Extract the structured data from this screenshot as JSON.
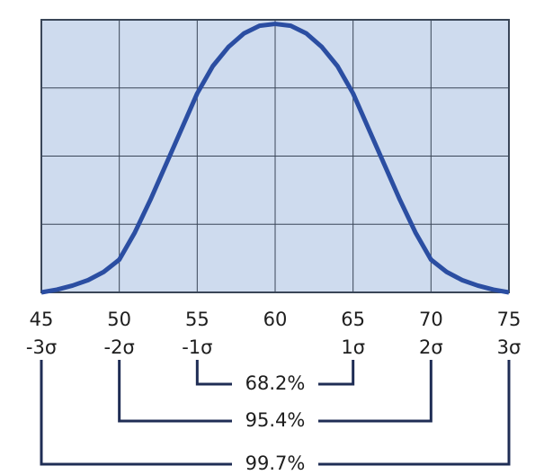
{
  "chart_data": {
    "type": "line",
    "x": [
      45,
      46,
      47,
      48,
      49,
      50,
      51,
      52,
      53,
      54,
      55,
      56,
      57,
      58,
      59,
      60,
      61,
      62,
      63,
      64,
      65,
      66,
      67,
      68,
      69,
      70,
      71,
      72,
      73,
      74,
      75
    ],
    "series": [
      {
        "color": "#2b4ea2",
        "values": [
          0.0,
          0.01,
          0.025,
          0.045,
          0.075,
          0.12,
          0.22,
          0.34,
          0.47,
          0.6,
          0.73,
          0.83,
          0.9,
          0.95,
          0.978,
          0.985,
          0.978,
          0.95,
          0.9,
          0.83,
          0.73,
          0.6,
          0.47,
          0.34,
          0.22,
          0.12,
          0.075,
          0.045,
          0.025,
          0.01,
          0.0
        ]
      }
    ],
    "xlim": [
      45,
      75
    ],
    "xticks": [
      45,
      50,
      55,
      60,
      65,
      70,
      75
    ],
    "sigma_labels": [
      "-3σ",
      "-2σ",
      "-1σ",
      null,
      "1σ",
      "2σ",
      "3σ"
    ],
    "ylim": [
      0,
      1
    ],
    "yticks": [
      0,
      0.25,
      0.5,
      0.75,
      1
    ],
    "grid": true,
    "intervals": [
      {
        "label": "68.2%",
        "from": 55,
        "to": 65
      },
      {
        "label": "95.4%",
        "from": 50,
        "to": 70
      },
      {
        "label": "99.7%",
        "from": 45,
        "to": 75
      }
    ]
  }
}
